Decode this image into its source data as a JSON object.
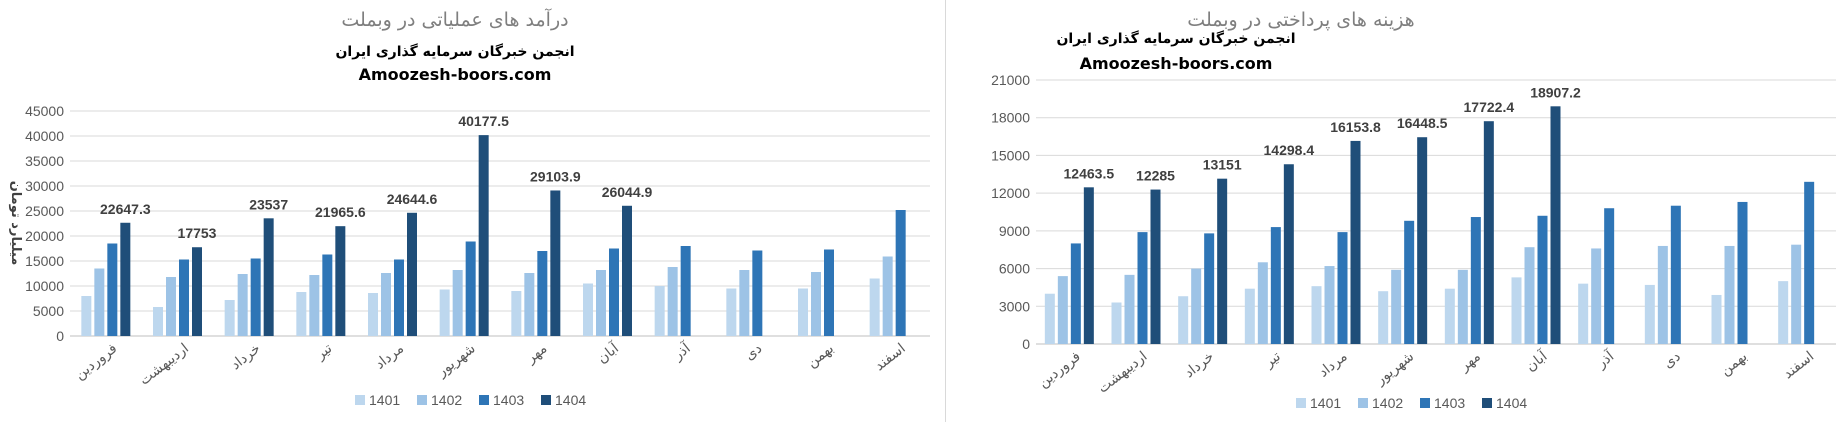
{
  "chart_data": [
    {
      "type": "bar",
      "title": "درآمد های عملیاتی در وبملت",
      "subtitle_lines": [
        "انجمن خبرگان سرمایه گذاری ایران",
        "Amoozesh-boors.com"
      ],
      "ylabel": "میلیارد تومان",
      "xlabel": "",
      "ylim": [
        0,
        45000
      ],
      "yticks": [
        0,
        5000,
        10000,
        15000,
        20000,
        25000,
        30000,
        35000,
        40000,
        45000
      ],
      "grid": true,
      "legend_position": "bottom",
      "categories": [
        "فروردین",
        "اردیبهشت",
        "خرداد",
        "تیر",
        "مرداد",
        "شهریور",
        "مهر",
        "آبان",
        "آذر",
        "دی",
        "بهمن",
        "اسفند"
      ],
      "series": [
        {
          "name": "1401",
          "color": "#bdd7ee",
          "values": [
            8000,
            5800,
            7200,
            8800,
            8600,
            9300,
            9000,
            10500,
            10000,
            9500,
            9500,
            11500
          ]
        },
        {
          "name": "1402",
          "color": "#9dc3e6",
          "values": [
            13500,
            11800,
            12400,
            12200,
            12600,
            13200,
            12600,
            13200,
            13800,
            13200,
            12800,
            15900
          ]
        },
        {
          "name": "1403",
          "color": "#2e75b6",
          "values": [
            18500,
            15300,
            15500,
            16300,
            15300,
            18900,
            17000,
            17500,
            18000,
            17100,
            17300,
            25200
          ]
        },
        {
          "name": "1404",
          "color": "#1f4e79",
          "values": [
            22647.3,
            17753,
            23537,
            21965.6,
            24644.6,
            40177.5,
            29103.9,
            26044.9,
            null,
            null,
            null,
            null
          ]
        }
      ],
      "data_labels": [
        "22647.3",
        "17753",
        "23537",
        "21965.6",
        "24644.6",
        "40177.5",
        "29103.9",
        "26044.9"
      ]
    },
    {
      "type": "bar",
      "title": "هزینه های پرداختی در وبملت",
      "subtitle_lines": [
        "انجمن خبرگان سرمایه گذاری ایران",
        "Amoozesh-boors.com"
      ],
      "ylabel": "",
      "xlabel": "",
      "ylim": [
        0,
        21000
      ],
      "yticks": [
        0,
        3000,
        6000,
        9000,
        12000,
        15000,
        18000,
        21000
      ],
      "grid": true,
      "legend_position": "bottom",
      "categories": [
        "فروردین",
        "اردیبهشت",
        "خرداد",
        "تیر",
        "مرداد",
        "شهریور",
        "مهر",
        "آبان",
        "آذر",
        "دی",
        "بهمن",
        "اسفند"
      ],
      "series": [
        {
          "name": "1401",
          "color": "#bdd7ee",
          "values": [
            4000,
            3300,
            3800,
            4400,
            4600,
            4200,
            4400,
            5300,
            4800,
            4700,
            3900,
            5000
          ]
        },
        {
          "name": "1402",
          "color": "#9dc3e6",
          "values": [
            5400,
            5500,
            6000,
            6500,
            6200,
            5900,
            5900,
            7700,
            7600,
            7800,
            7800,
            7900
          ]
        },
        {
          "name": "1403",
          "color": "#2e75b6",
          "values": [
            8000,
            8900,
            8800,
            9300,
            8900,
            9800,
            10100,
            10200,
            10800,
            11000,
            11300,
            12900
          ]
        },
        {
          "name": "1404",
          "color": "#1f4e79",
          "values": [
            12463.5,
            12285,
            13151,
            14298.4,
            16153.8,
            16448.5,
            17722.4,
            18907.2,
            null,
            null,
            null,
            null
          ]
        }
      ],
      "data_labels": [
        "12463.5",
        "12285",
        "13151",
        "14298.4",
        "16153.8",
        "16448.5",
        "17722.4",
        "18907.2"
      ]
    }
  ]
}
